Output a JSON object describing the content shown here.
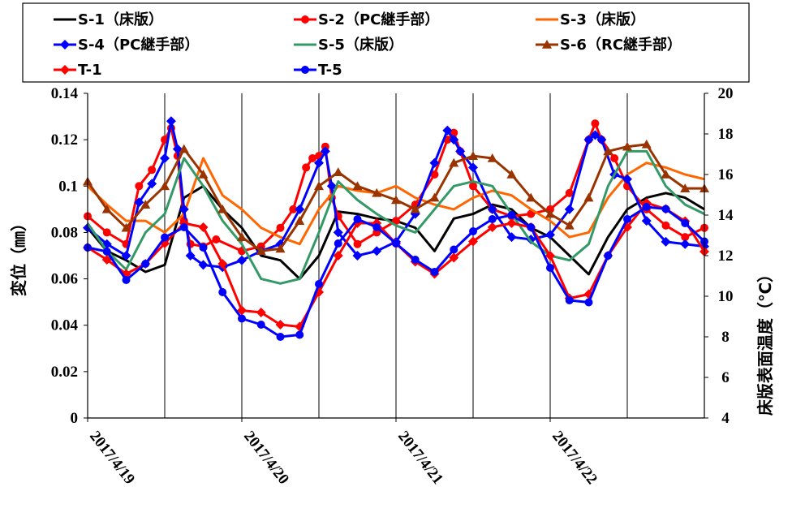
{
  "chart_data": {
    "type": "line",
    "ylabel_left": "変位（㎜）",
    "ylabel_right": "床版表面温度（℃）",
    "ylim_left": [
      0,
      0.14
    ],
    "yticks_left": [
      "0",
      "0.02",
      "0.04",
      "0.06",
      "0.08",
      "0.1",
      "0.12",
      "0.14"
    ],
    "ylim_right": [
      4,
      20
    ],
    "yticks_right": [
      "4",
      "6",
      "8",
      "10",
      "12",
      "14",
      "16",
      "18",
      "20"
    ],
    "x_range": [
      0,
      96
    ],
    "x_tick_labels": [
      "2017/4/19",
      "2017/4/20",
      "2017/4/21",
      "2017/4/22"
    ],
    "x_tick_positions": [
      0,
      24,
      48,
      72
    ],
    "vertical_gridlines": [
      12,
      24,
      36,
      48,
      60,
      72,
      84
    ],
    "x_unit": "hours from 2017/4/19 00:00",
    "legend_position": "top",
    "series": [
      {
        "name": "S-1（床版）",
        "axis": "left",
        "color": "#000000",
        "marker": "none",
        "x": [
          0,
          3,
          6,
          9,
          12,
          15,
          18,
          21,
          24,
          27,
          30,
          33,
          36,
          39,
          42,
          45,
          48,
          51,
          54,
          57,
          60,
          63,
          66,
          69,
          72,
          75,
          78,
          81,
          84,
          87,
          90,
          93,
          96
        ],
        "y": [
          0.082,
          0.072,
          0.068,
          0.063,
          0.066,
          0.095,
          0.1,
          0.09,
          0.082,
          0.07,
          0.068,
          0.06,
          0.07,
          0.089,
          0.088,
          0.086,
          0.085,
          0.082,
          0.072,
          0.086,
          0.088,
          0.092,
          0.09,
          0.082,
          0.078,
          0.07,
          0.062,
          0.078,
          0.09,
          0.095,
          0.097,
          0.095,
          0.09
        ]
      },
      {
        "name": "S-2（PC継手部）",
        "axis": "left",
        "color": "#ff0000",
        "marker": "circle",
        "x": [
          0,
          3,
          6,
          8,
          10,
          12,
          13,
          14,
          15,
          16,
          18,
          20,
          24,
          27,
          30,
          32,
          34,
          35,
          36,
          37,
          38,
          39,
          42,
          45,
          48,
          51,
          54,
          56,
          57,
          58,
          60,
          63,
          66,
          69,
          72,
          75,
          78,
          79,
          80,
          82,
          84,
          87,
          90,
          93,
          96
        ],
        "y": [
          0.087,
          0.08,
          0.075,
          0.1,
          0.107,
          0.12,
          0.125,
          0.113,
          0.085,
          0.075,
          0.074,
          0.077,
          0.072,
          0.074,
          0.082,
          0.09,
          0.108,
          0.112,
          0.113,
          0.117,
          0.095,
          0.087,
          0.075,
          0.08,
          0.085,
          0.092,
          0.105,
          0.12,
          0.123,
          0.115,
          0.1,
          0.09,
          0.087,
          0.088,
          0.09,
          0.097,
          0.12,
          0.127,
          0.12,
          0.112,
          0.1,
          0.09,
          0.083,
          0.078,
          0.082
        ]
      },
      {
        "name": "S-3（床版）",
        "axis": "left",
        "color": "#ff6600",
        "marker": "none",
        "x": [
          0,
          3,
          6,
          9,
          12,
          15,
          18,
          21,
          24,
          27,
          30,
          33,
          36,
          39,
          42,
          45,
          48,
          51,
          54,
          57,
          60,
          63,
          66,
          69,
          72,
          75,
          78,
          81,
          84,
          87,
          90,
          93,
          96
        ],
        "y": [
          0.1,
          0.092,
          0.085,
          0.085,
          0.08,
          0.088,
          0.112,
          0.096,
          0.09,
          0.082,
          0.078,
          0.075,
          0.09,
          0.1,
          0.098,
          0.097,
          0.1,
          0.095,
          0.092,
          0.09,
          0.095,
          0.098,
          0.096,
          0.09,
          0.085,
          0.078,
          0.08,
          0.095,
          0.105,
          0.11,
          0.108,
          0.105,
          0.103
        ]
      },
      {
        "name": "S-4（PC継手部）",
        "axis": "left",
        "color": "#0000ff",
        "marker": "diamond",
        "x": [
          0,
          3,
          6,
          8,
          10,
          12,
          13,
          14,
          15,
          16,
          18,
          21,
          24,
          27,
          30,
          33,
          36,
          37,
          38,
          39,
          42,
          45,
          48,
          51,
          54,
          56,
          57,
          58,
          60,
          63,
          66,
          69,
          72,
          75,
          78,
          79,
          80,
          82,
          84,
          87,
          90,
          93,
          96
        ],
        "y": [
          0.082,
          0.075,
          0.07,
          0.093,
          0.101,
          0.112,
          0.128,
          0.116,
          0.09,
          0.07,
          0.066,
          0.065,
          0.068,
          0.072,
          0.075,
          0.09,
          0.11,
          0.115,
          0.1,
          0.08,
          0.07,
          0.072,
          0.076,
          0.088,
          0.11,
          0.124,
          0.12,
          0.115,
          0.108,
          0.09,
          0.078,
          0.077,
          0.079,
          0.09,
          0.12,
          0.122,
          0.12,
          0.105,
          0.103,
          0.085,
          0.076,
          0.075,
          0.074
        ]
      },
      {
        "name": "S-5（床版）",
        "axis": "left",
        "color": "#339966",
        "marker": "none",
        "x": [
          0,
          3,
          6,
          9,
          12,
          15,
          18,
          21,
          24,
          27,
          30,
          33,
          36,
          39,
          42,
          45,
          48,
          51,
          54,
          57,
          60,
          63,
          66,
          69,
          72,
          75,
          78,
          81,
          84,
          87,
          90,
          93,
          96
        ],
        "y": [
          0.084,
          0.072,
          0.064,
          0.08,
          0.088,
          0.112,
          0.1,
          0.085,
          0.075,
          0.06,
          0.058,
          0.06,
          0.08,
          0.102,
          0.094,
          0.088,
          0.083,
          0.08,
          0.09,
          0.1,
          0.102,
          0.1,
          0.088,
          0.076,
          0.07,
          0.068,
          0.075,
          0.1,
          0.115,
          0.115,
          0.1,
          0.092,
          0.088
        ]
      },
      {
        "name": "S-6（RC継手部）",
        "axis": "left",
        "color": "#993300",
        "marker": "triangle",
        "x": [
          0,
          3,
          6,
          9,
          12,
          15,
          18,
          21,
          24,
          27,
          30,
          33,
          36,
          39,
          42,
          45,
          48,
          51,
          54,
          57,
          60,
          63,
          66,
          69,
          72,
          75,
          78,
          81,
          84,
          87,
          90,
          93,
          96
        ],
        "y": [
          0.102,
          0.09,
          0.082,
          0.092,
          0.1,
          0.116,
          0.105,
          0.09,
          0.078,
          0.072,
          0.073,
          0.085,
          0.1,
          0.106,
          0.1,
          0.097,
          0.094,
          0.09,
          0.095,
          0.11,
          0.113,
          0.112,
          0.105,
          0.095,
          0.088,
          0.083,
          0.095,
          0.115,
          0.117,
          0.118,
          0.105,
          0.099,
          0.099
        ]
      },
      {
        "name": "T-1",
        "axis": "right",
        "color": "#ff0000",
        "marker": "diamond",
        "x": [
          0,
          3,
          6,
          9,
          12,
          15,
          18,
          21,
          24,
          27,
          30,
          33,
          36,
          39,
          42,
          45,
          48,
          51,
          54,
          57,
          60,
          63,
          66,
          69,
          72,
          75,
          78,
          81,
          84,
          87,
          90,
          93,
          96
        ],
        "y": [
          12.4,
          11.8,
          11.1,
          11.6,
          12.6,
          13.6,
          13.4,
          11.6,
          9.3,
          9.2,
          8.6,
          8.5,
          10.2,
          12.0,
          13.6,
          13.6,
          12.6,
          11.7,
          11.1,
          11.9,
          12.7,
          13.4,
          13.6,
          13.4,
          12.0,
          9.9,
          10.1,
          12.0,
          13.4,
          14.6,
          14.3,
          13.7,
          12.2
        ]
      },
      {
        "name": "T-5",
        "axis": "right",
        "color": "#0000ff",
        "marker": "circle",
        "x": [
          0,
          3,
          6,
          9,
          12,
          15,
          18,
          21,
          24,
          27,
          30,
          33,
          36,
          39,
          42,
          45,
          48,
          51,
          54,
          57,
          60,
          63,
          66,
          69,
          72,
          75,
          78,
          81,
          84,
          87,
          90,
          93,
          96
        ],
        "y": [
          12.4,
          12.2,
          10.8,
          11.6,
          12.9,
          13.4,
          12.4,
          10.2,
          8.9,
          8.6,
          8.0,
          8.1,
          10.6,
          12.6,
          13.8,
          13.4,
          12.6,
          11.8,
          11.2,
          12.3,
          13.2,
          13.8,
          14.0,
          13.4,
          11.4,
          9.8,
          9.7,
          12.0,
          13.8,
          14.4,
          14.3,
          13.6,
          12.7
        ]
      }
    ]
  }
}
